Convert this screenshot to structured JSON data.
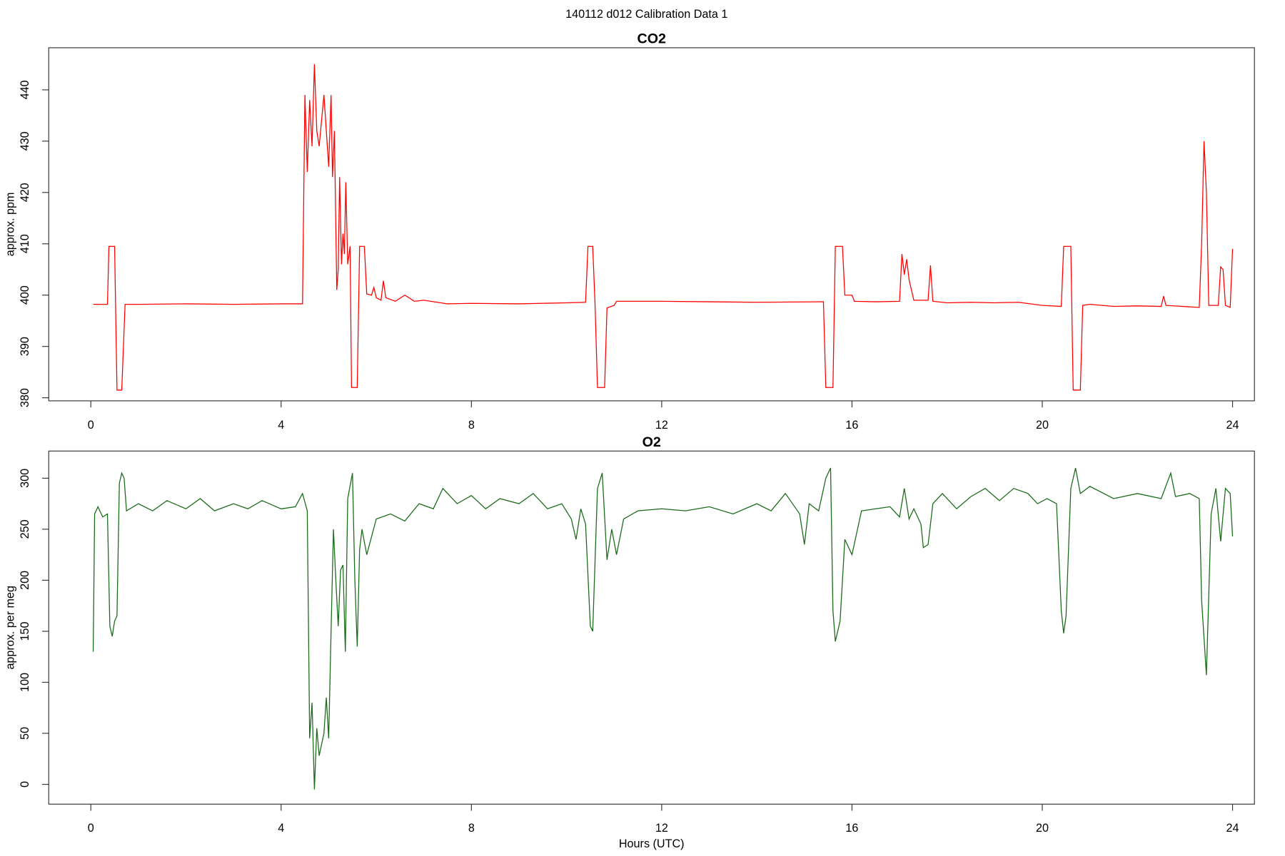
{
  "title": "140112   d012   Calibration Data 1",
  "chart_data": [
    {
      "type": "line",
      "title": "CO2",
      "ylabel": "approx. ppm",
      "xlim": [
        -0.885,
        24.46
      ],
      "xticks": [
        0,
        4,
        8,
        12,
        16,
        20,
        24
      ],
      "ylim": [
        379.4,
        448.2
      ],
      "yticks": [
        380,
        390,
        400,
        410,
        420,
        430,
        440
      ],
      "series": [
        {
          "color": "#ff0000",
          "x": [
            0.05,
            0.35,
            0.38,
            0.5,
            0.52,
            0.55,
            0.65,
            0.72,
            1,
            2,
            3,
            4,
            4.45,
            4.5,
            4.55,
            4.6,
            4.65,
            4.7,
            4.75,
            4.8,
            4.9,
            5.0,
            5.05,
            5.08,
            5.12,
            5.17,
            5.2,
            5.23,
            5.27,
            5.3,
            5.33,
            5.36,
            5.4,
            5.45,
            5.48,
            5.6,
            5.65,
            5.75,
            5.8,
            5.9,
            5.95,
            6.0,
            6.1,
            6.15,
            6.2,
            6.4,
            6.6,
            6.8,
            7,
            7.5,
            8,
            9,
            10,
            10.4,
            10.45,
            10.55,
            10.6,
            10.65,
            10.8,
            10.85,
            11,
            11.05,
            12,
            13,
            14,
            15.4,
            15.45,
            15.6,
            15.65,
            15.8,
            15.85,
            16,
            16.05,
            16.5,
            17,
            17.05,
            17.1,
            17.15,
            17.2,
            17.3,
            17.6,
            17.65,
            17.7,
            18,
            18.5,
            19,
            19.5,
            20,
            20.4,
            20.45,
            20.6,
            20.65,
            20.8,
            20.85,
            21,
            21.5,
            22,
            22.5,
            22.55,
            22.6,
            23.3,
            23.35,
            23.4,
            23.45,
            23.5,
            23.7,
            23.75,
            23.8,
            23.85,
            23.95,
            24
          ],
          "values": [
            398.2,
            398.2,
            409.5,
            409.5,
            398,
            381.5,
            381.5,
            398.2,
            398.2,
            398.3,
            398.2,
            398.3,
            398.3,
            439,
            424,
            438,
            429,
            445,
            432,
            429,
            439,
            425,
            439,
            423,
            432,
            401,
            405,
            423,
            406,
            412,
            408,
            422,
            406,
            409.5,
            382,
            382,
            409.5,
            409.5,
            400.2,
            400,
            401.5,
            399.5,
            399,
            402.8,
            399.5,
            398.8,
            400,
            398.8,
            399,
            398.3,
            398.4,
            398.3,
            398.5,
            398.6,
            409.5,
            409.5,
            398,
            382,
            382,
            397.5,
            398,
            398.8,
            398.8,
            398.7,
            398.6,
            398.7,
            382,
            382,
            409.5,
            409.5,
            400,
            400,
            398.8,
            398.7,
            398.8,
            408,
            404,
            407,
            403,
            399,
            399,
            405.8,
            398.8,
            398.5,
            398.6,
            398.5,
            398.6,
            398,
            397.8,
            409.5,
            409.5,
            381.5,
            381.5,
            398,
            398.2,
            397.8,
            397.9,
            397.8,
            399.8,
            398,
            397.6,
            410,
            430,
            420,
            398,
            398,
            405.5,
            405,
            398,
            397.6,
            409
          ]
        }
      ]
    },
    {
      "type": "line",
      "title": "O2",
      "ylabel": "approx. per meg",
      "xlabel": "Hours (UTC)",
      "xlim": [
        -0.885,
        24.46
      ],
      "xticks": [
        0,
        4,
        8,
        12,
        16,
        20,
        24
      ],
      "ylim": [
        -19.4,
        326.6
      ],
      "yticks": [
        0,
        50,
        100,
        150,
        200,
        250,
        300
      ],
      "series": [
        {
          "color": "#1a6b1a",
          "x": [
            0.05,
            0.08,
            0.15,
            0.25,
            0.35,
            0.4,
            0.45,
            0.5,
            0.55,
            0.6,
            0.65,
            0.7,
            0.75,
            1,
            1.3,
            1.6,
            2,
            2.3,
            2.6,
            3,
            3.3,
            3.6,
            4,
            4.3,
            4.45,
            4.55,
            4.6,
            4.65,
            4.7,
            4.75,
            4.8,
            4.9,
            4.95,
            5.0,
            5.05,
            5.1,
            5.15,
            5.2,
            5.25,
            5.3,
            5.35,
            5.4,
            5.5,
            5.55,
            5.6,
            5.65,
            5.7,
            5.8,
            6,
            6.3,
            6.6,
            6.9,
            7.2,
            7.4,
            7.7,
            8,
            8.3,
            8.6,
            9,
            9.3,
            9.6,
            9.9,
            10.1,
            10.2,
            10.3,
            10.4,
            10.5,
            10.55,
            10.65,
            10.75,
            10.85,
            10.95,
            11.05,
            11.2,
            11.5,
            12,
            12.5,
            13,
            13.5,
            14,
            14.3,
            14.6,
            14.9,
            15.0,
            15.1,
            15.3,
            15.45,
            15.55,
            15.6,
            15.65,
            15.75,
            15.85,
            16,
            16.2,
            16.5,
            16.8,
            17,
            17.1,
            17.2,
            17.3,
            17.45,
            17.5,
            17.6,
            17.7,
            17.9,
            18.2,
            18.5,
            18.8,
            19.1,
            19.4,
            19.7,
            19.9,
            20.1,
            20.3,
            20.4,
            20.45,
            20.5,
            20.6,
            20.7,
            20.8,
            21,
            21.5,
            22,
            22.5,
            22.7,
            22.8,
            23.1,
            23.3,
            23.35,
            23.45,
            23.55,
            23.65,
            23.75,
            23.85,
            23.95,
            24
          ],
          "values": [
            130,
            265,
            272,
            262,
            265,
            155,
            145,
            160,
            165,
            295,
            305,
            300,
            268,
            275,
            268,
            278,
            270,
            280,
            268,
            275,
            270,
            278,
            270,
            272,
            285,
            268,
            45,
            80,
            -5,
            55,
            28,
            50,
            85,
            45,
            150,
            250,
            200,
            155,
            210,
            215,
            130,
            280,
            305,
            200,
            135,
            230,
            250,
            225,
            260,
            265,
            258,
            275,
            270,
            290,
            275,
            283,
            270,
            280,
            275,
            285,
            270,
            275,
            260,
            240,
            270,
            255,
            155,
            150,
            290,
            305,
            220,
            250,
            225,
            260,
            268,
            270,
            268,
            272,
            265,
            275,
            268,
            285,
            265,
            235,
            275,
            268,
            300,
            310,
            170,
            140,
            160,
            240,
            225,
            268,
            270,
            272,
            262,
            290,
            260,
            270,
            255,
            232,
            235,
            275,
            285,
            270,
            282,
            290,
            278,
            290,
            285,
            275,
            280,
            275,
            170,
            148,
            165,
            290,
            310,
            285,
            292,
            280,
            285,
            280,
            305,
            282,
            285,
            280,
            180,
            107,
            265,
            290,
            238,
            290,
            285,
            243
          ]
        }
      ]
    }
  ]
}
